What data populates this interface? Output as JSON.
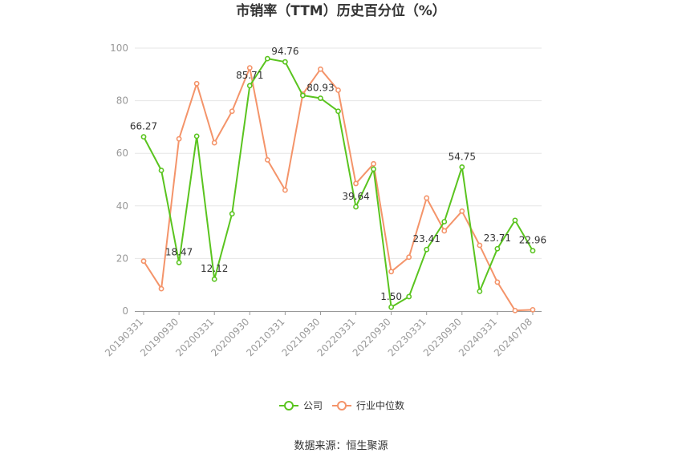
{
  "chart_data": {
    "type": "line",
    "title": "市销率（TTM）历史百分位（%）",
    "source": "数据来源：恒生聚源",
    "ylim": [
      0,
      100
    ],
    "yticks": [
      0,
      20,
      40,
      60,
      80,
      100
    ],
    "grid": true,
    "legend_position": "bottom",
    "x": [
      "20190331",
      "20190630",
      "20190930",
      "20191231",
      "20200331",
      "20200630",
      "20200930",
      "20201231",
      "20210331",
      "20210630",
      "20210930",
      "20211231",
      "20220331",
      "20220630",
      "20220930",
      "20221231",
      "20230331",
      "20230630",
      "20230930",
      "20231231",
      "20240331",
      "20240630",
      "20240708"
    ],
    "xtick_labels": [
      "20190331",
      "20190930",
      "20200331",
      "20200930",
      "20210331",
      "20210930",
      "20220331",
      "20220930",
      "20230331",
      "20230930",
      "20240331",
      "20240708"
    ],
    "series": [
      {
        "name": "公司",
        "color": "#5ac41f",
        "values": [
          66.27,
          53.5,
          18.47,
          66.5,
          12.12,
          37.0,
          85.71,
          96.0,
          94.76,
          82.0,
          80.93,
          76.0,
          39.64,
          54.0,
          1.5,
          5.5,
          23.41,
          34.0,
          54.75,
          7.5,
          23.71,
          34.5,
          22.96
        ],
        "labels": {
          "0": "66.27",
          "2": "18.47",
          "4": "12.12",
          "6": "85.71",
          "8": "94.76",
          "10": "80.93",
          "12": "39.64",
          "14": "1.50",
          "16": "23.41",
          "18": "54.75",
          "20": "23.71",
          "22": "22.96"
        }
      },
      {
        "name": "行业中位数",
        "color": "#f4946a",
        "values": [
          19.0,
          8.5,
          65.5,
          86.5,
          64.0,
          76.0,
          92.5,
          57.5,
          46.0,
          82.5,
          92.0,
          84.0,
          48.5,
          56.0,
          15.0,
          20.5,
          43.0,
          30.5,
          38.0,
          25.0,
          11.0,
          0.2,
          0.5
        ]
      }
    ]
  }
}
